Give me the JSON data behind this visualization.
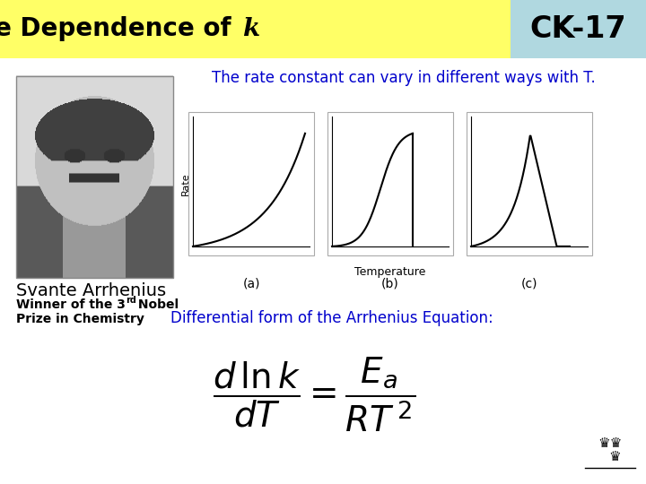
{
  "title_left": "Temperature Dependence of ",
  "title_k": "k",
  "title_right": "CK-17",
  "title_bg_left": "#ffff66",
  "title_bg_right": "#b0d8e0",
  "subtitle": "The rate constant can vary in different ways with T.",
  "subtitle_color": "#0000cc",
  "name_text": "Svante Arrhenius",
  "diff_form": "Differential form of the Arrhenius Equation:",
  "diff_color": "#0000cc",
  "bg_color": "#ffffff",
  "label_a": "(a)",
  "label_b": "(b)",
  "label_c": "(c)",
  "temp_label": "Temperature",
  "rate_label": "Rate",
  "title_fontsize": 20,
  "ck_fontsize": 24
}
